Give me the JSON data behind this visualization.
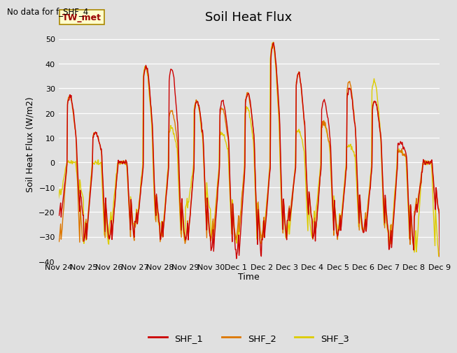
{
  "title": "Soil Heat Flux",
  "ylabel": "Soil Heat Flux (W/m2)",
  "xlabel": "Time",
  "annotation": "No data for f_SHF_4",
  "legend_label": "TW_met",
  "ylim": [
    -40,
    55
  ],
  "yticks": [
    -40,
    -30,
    -20,
    -10,
    0,
    10,
    20,
    30,
    40,
    50
  ],
  "series_labels": [
    "SHF_1",
    "SHF_2",
    "SHF_3"
  ],
  "series_colors": [
    "#cc0000",
    "#dd7700",
    "#ddcc00"
  ],
  "line_width": 1.0,
  "background_color": "#e0e0e0",
  "plot_bg_color": "#e0e0e0",
  "title_fontsize": 13,
  "label_fontsize": 9,
  "tick_fontsize": 8,
  "xtick_labels": [
    "Nov 24",
    "Nov 25",
    "Nov 26",
    "Nov 27",
    "Nov 28",
    "Nov 29",
    "Nov 30",
    "Dec 1",
    "Dec 2",
    "Dec 3",
    "Dec 4",
    "Dec 5",
    "Dec 6",
    "Dec 7",
    "Dec 8",
    "Dec 9"
  ],
  "n_days": 16,
  "ppd": 48,
  "day_peaks": [
    27,
    12,
    0,
    39,
    38,
    25,
    25,
    28,
    48,
    36,
    25,
    30,
    25,
    8,
    0,
    0
  ],
  "day_troughs": [
    -22,
    -31,
    -31,
    -25,
    -31,
    -31,
    -36,
    -38,
    -31,
    -24,
    -31,
    -28,
    -28,
    -35,
    -21,
    -38
  ],
  "shf2_peaks": [
    27,
    12,
    0,
    39,
    21,
    25,
    22,
    28,
    48,
    36,
    16,
    33,
    25,
    5,
    0,
    0
  ],
  "shf2_troughs": [
    -33,
    -31,
    -31,
    -26,
    -32,
    -32,
    -31,
    -30,
    -30,
    -23,
    -31,
    -28,
    -28,
    -34,
    -20,
    -37
  ],
  "shf3_peaks": [
    0,
    0,
    0,
    39,
    14,
    25,
    12,
    22,
    48,
    13,
    16,
    7,
    33,
    5,
    0,
    0
  ],
  "shf3_troughs": [
    -14,
    -33,
    -26,
    -26,
    -32,
    -19,
    -31,
    -33,
    -31,
    -30,
    -26,
    -28,
    -28,
    -34,
    -37,
    -37
  ]
}
